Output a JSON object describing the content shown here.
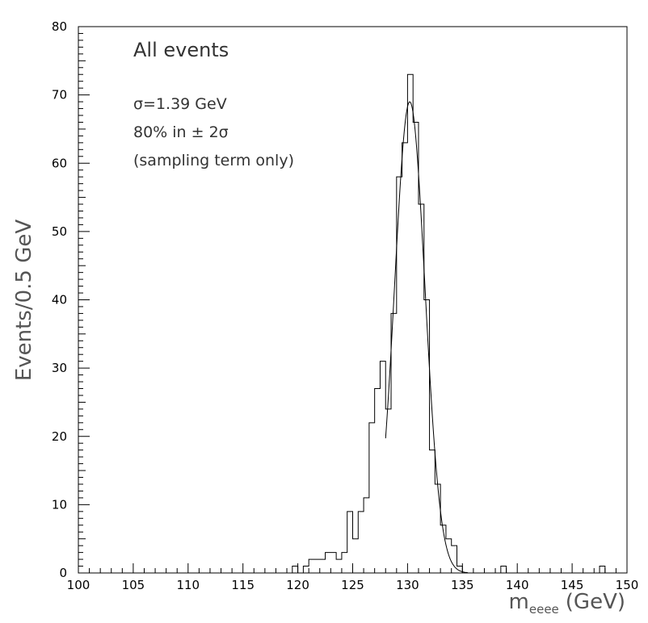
{
  "chart_data": {
    "type": "histogram",
    "xlabel_main": "m",
    "xlabel_sub": "eeee",
    "xlabel_unit": "(GeV)",
    "ylabel": "Events/0.5 GeV",
    "xlim": [
      100,
      150
    ],
    "ylim": [
      0,
      80
    ],
    "x_ticks": [
      100,
      105,
      110,
      115,
      120,
      125,
      130,
      135,
      140,
      145,
      150
    ],
    "y_ticks": [
      0,
      10,
      20,
      30,
      40,
      50,
      60,
      70,
      80
    ],
    "grid": false,
    "bin_width": 0.5,
    "bins": [
      {
        "x": 119.5,
        "y": 1
      },
      {
        "x": 120.0,
        "y": 0
      },
      {
        "x": 120.5,
        "y": 1
      },
      {
        "x": 121.0,
        "y": 2
      },
      {
        "x": 121.5,
        "y": 2
      },
      {
        "x": 122.0,
        "y": 2
      },
      {
        "x": 122.5,
        "y": 3
      },
      {
        "x": 123.0,
        "y": 3
      },
      {
        "x": 123.5,
        "y": 2
      },
      {
        "x": 124.0,
        "y": 3
      },
      {
        "x": 124.5,
        "y": 9
      },
      {
        "x": 125.0,
        "y": 5
      },
      {
        "x": 125.5,
        "y": 9
      },
      {
        "x": 126.0,
        "y": 11
      },
      {
        "x": 126.5,
        "y": 22
      },
      {
        "x": 127.0,
        "y": 27
      },
      {
        "x": 127.5,
        "y": 31
      },
      {
        "x": 128.0,
        "y": 24
      },
      {
        "x": 128.5,
        "y": 38
      },
      {
        "x": 129.0,
        "y": 58
      },
      {
        "x": 129.5,
        "y": 63
      },
      {
        "x": 130.0,
        "y": 73
      },
      {
        "x": 130.5,
        "y": 66
      },
      {
        "x": 131.0,
        "y": 54
      },
      {
        "x": 131.5,
        "y": 40
      },
      {
        "x": 132.0,
        "y": 18
      },
      {
        "x": 132.5,
        "y": 13
      },
      {
        "x": 133.0,
        "y": 7
      },
      {
        "x": 133.5,
        "y": 5
      },
      {
        "x": 134.0,
        "y": 4
      },
      {
        "x": 134.5,
        "y": 1
      },
      {
        "x": 138.5,
        "y": 1
      },
      {
        "x": 147.5,
        "y": 1
      }
    ],
    "fit": {
      "shape": "gaussian",
      "mean": 130.2,
      "sigma": 1.39,
      "amplitude": 69,
      "x_range": [
        128.0,
        135.5
      ]
    },
    "annotations": {
      "title": "All events",
      "line1": "σ=1.39 GeV",
      "line2": "80% in ± 2σ",
      "line3": "(sampling term only)"
    }
  }
}
